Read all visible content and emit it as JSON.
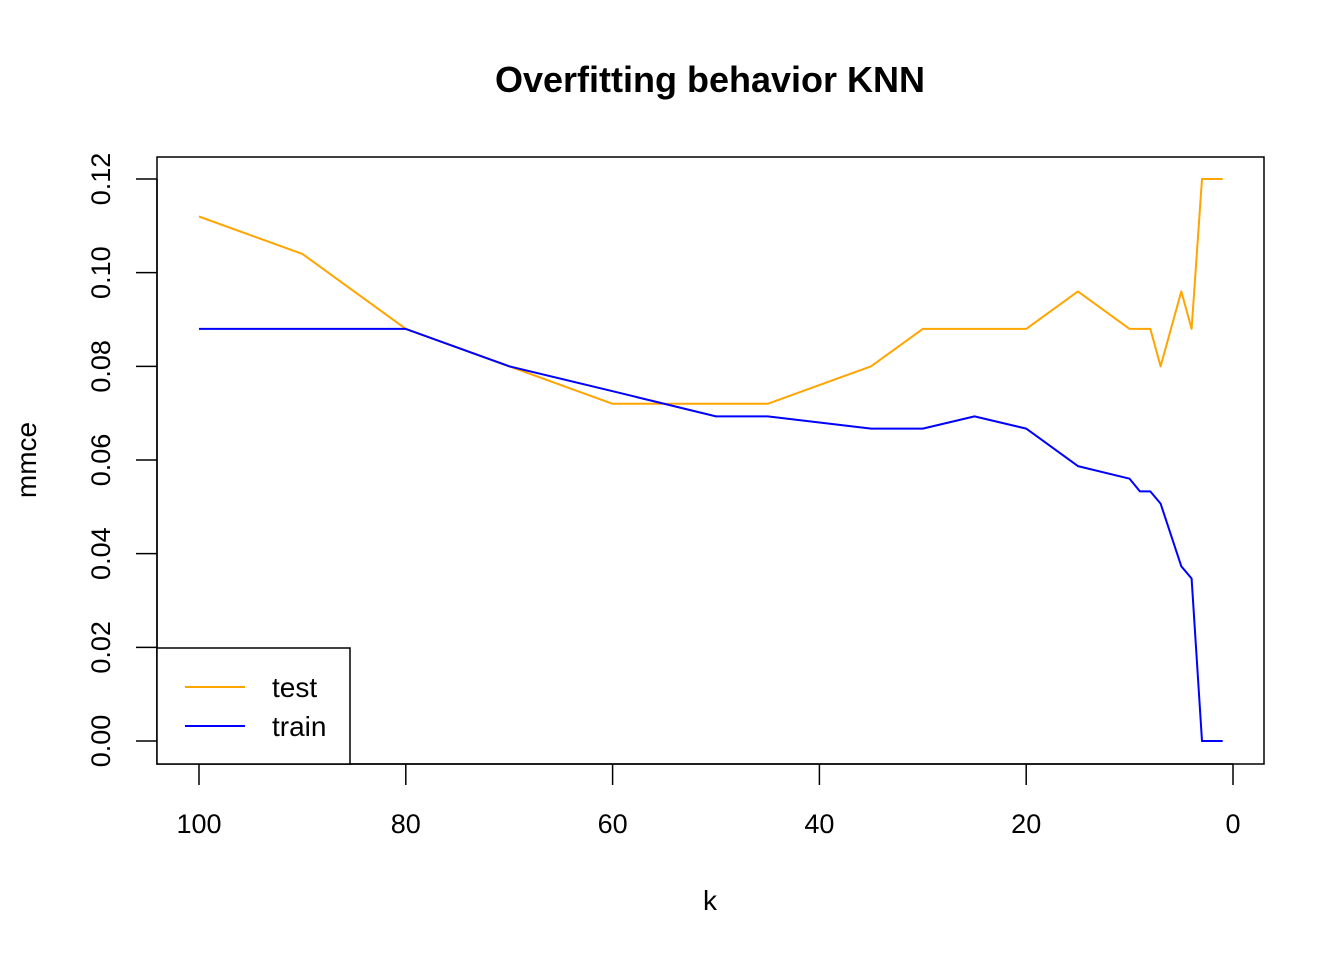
{
  "chart_data": {
    "type": "line",
    "title": "Overfitting behavior KNN",
    "xlabel": "k",
    "ylabel": "mmce",
    "xlim": [
      100,
      0
    ],
    "ylim": [
      0,
      0.12
    ],
    "x_reversed": true,
    "x_ticks": [
      100,
      80,
      60,
      40,
      20,
      0
    ],
    "x_tick_labels": [
      "100",
      "80",
      "60",
      "40",
      "20",
      "0"
    ],
    "y_ticks": [
      0,
      0.02,
      0.04,
      0.06,
      0.08,
      0.1,
      0.12
    ],
    "y_tick_labels": [
      "0.00",
      "0.02",
      "0.04",
      "0.06",
      "0.08",
      "0.10",
      "0.12"
    ],
    "grid": false,
    "legend_position": "bottom-left",
    "series": [
      {
        "name": "test",
        "color": "#FFA500",
        "x": [
          100,
          90,
          80,
          70,
          60,
          50,
          45,
          35,
          30,
          25,
          20,
          15,
          10,
          8,
          7,
          5,
          4,
          3,
          1
        ],
        "y": [
          0.112,
          0.104,
          0.088,
          0.08,
          0.072,
          0.072,
          0.072,
          0.08,
          0.088,
          0.088,
          0.088,
          0.096,
          0.088,
          0.088,
          0.08,
          0.096,
          0.088,
          0.12,
          0.12
        ]
      },
      {
        "name": "train",
        "color": "#0000FF",
        "x": [
          100,
          90,
          80,
          70,
          60,
          50,
          45,
          35,
          30,
          25,
          20,
          15,
          10,
          9,
          8,
          7,
          5,
          4,
          3,
          1
        ],
        "y": [
          0.088,
          0.088,
          0.088,
          0.08,
          0.0747,
          0.0693,
          0.0693,
          0.0667,
          0.0667,
          0.0693,
          0.0667,
          0.0587,
          0.056,
          0.0533,
          0.0533,
          0.0507,
          0.0373,
          0.0347,
          0.0,
          0.0
        ]
      }
    ]
  }
}
